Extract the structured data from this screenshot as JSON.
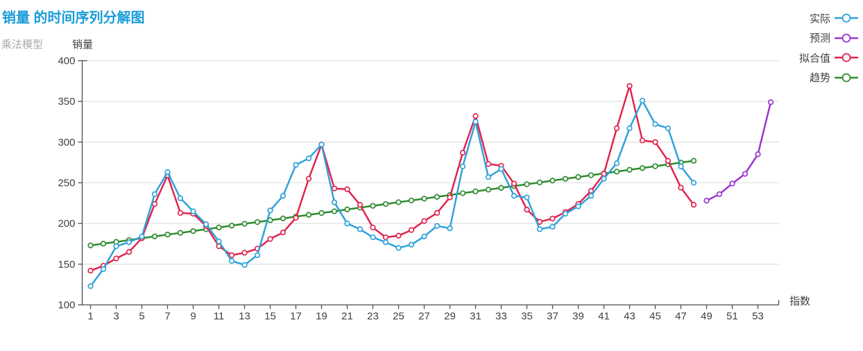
{
  "header": {
    "title": "销量 的时间序列分解图",
    "title_color": "#1a9cd8",
    "model_label": "乘法模型"
  },
  "axes": {
    "y_title": "销量",
    "x_title": "指数"
  },
  "legend": {
    "items": [
      {
        "id": "actual",
        "label": "实际",
        "color": "#2fa2db",
        "marker": "circle-icon"
      },
      {
        "id": "forecast",
        "label": "预测",
        "color": "#9b35cf",
        "marker": "circle-icon"
      },
      {
        "id": "fitted",
        "label": "拟合值",
        "color": "#e2234e",
        "marker": "circle-icon"
      },
      {
        "id": "trend",
        "label": "趋势",
        "color": "#2e8b2e",
        "marker": "circle-icon"
      }
    ]
  },
  "chart_data": {
    "type": "line",
    "title": "销量 的时间序列分解图",
    "subtitle": "乘法模型",
    "xlabel": "指数",
    "ylabel": "销量",
    "ylim": [
      100,
      400
    ],
    "xlim": [
      1,
      54
    ],
    "y_ticks": [
      100,
      150,
      200,
      250,
      300,
      350,
      400
    ],
    "x_ticks": [
      1,
      3,
      5,
      7,
      9,
      11,
      13,
      15,
      17,
      19,
      21,
      23,
      25,
      27,
      29,
      31,
      33,
      35,
      37,
      39,
      41,
      43,
      45,
      47,
      49,
      51,
      53
    ],
    "grid": "horizontal",
    "legend_position": "top-right",
    "series": [
      {
        "name": "实际",
        "color": "#2fa2db",
        "x_start": 1,
        "values": [
          123,
          144,
          172,
          177,
          184,
          236,
          263,
          231,
          215,
          199,
          178,
          154,
          149,
          161,
          216,
          234,
          272,
          280,
          297,
          226,
          200,
          193,
          183,
          177,
          170,
          174,
          184,
          197,
          194,
          270,
          325,
          257,
          267,
          234,
          232,
          193,
          196,
          212,
          221,
          234,
          255,
          274,
          317,
          351,
          322,
          317,
          270,
          250
        ]
      },
      {
        "name": "预测",
        "color": "#9b35cf",
        "x_start": 49,
        "values": [
          228,
          236,
          249,
          261,
          285,
          349
        ]
      },
      {
        "name": "拟合值",
        "color": "#e2234e",
        "x_start": 1,
        "values": [
          142,
          148,
          157,
          165,
          182,
          224,
          259,
          213,
          212,
          197,
          172,
          161,
          164,
          169,
          181,
          189,
          207,
          255,
          297,
          243,
          242,
          223,
          195,
          183,
          185,
          192,
          203,
          213,
          232,
          287,
          332,
          273,
          271,
          249,
          217,
          202,
          206,
          214,
          224,
          240,
          261,
          317,
          369,
          302,
          300,
          277,
          244,
          223
        ]
      },
      {
        "name": "趋势",
        "color": "#2e8b2e",
        "x_start": 1,
        "values": [
          173.0,
          175.2,
          177.4,
          179.6,
          181.9,
          184.1,
          186.3,
          188.5,
          190.7,
          192.9,
          195.1,
          197.3,
          199.6,
          201.8,
          204.0,
          206.2,
          208.4,
          210.6,
          212.8,
          215.0,
          217.3,
          219.5,
          221.7,
          223.9,
          226.1,
          228.3,
          230.5,
          232.7,
          235.0,
          237.2,
          239.4,
          241.6,
          243.8,
          246.0,
          248.2,
          250.4,
          252.7,
          254.9,
          257.1,
          259.3,
          261.5,
          263.7,
          265.9,
          268.1,
          270.4,
          272.6,
          274.8,
          277.0
        ]
      }
    ]
  }
}
